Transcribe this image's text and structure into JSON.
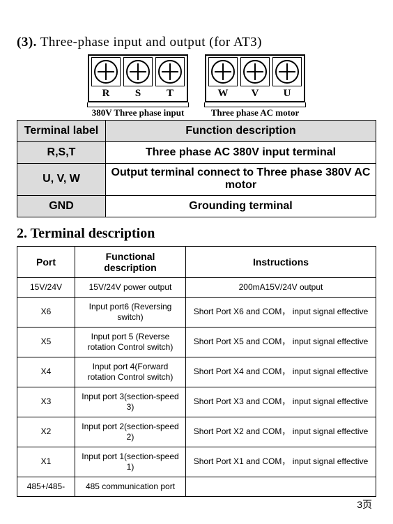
{
  "section": {
    "number": "(3).",
    "title": "Three-phase input and output (for AT3)"
  },
  "diagram": {
    "left": {
      "terminals": [
        "R",
        "S",
        "T"
      ],
      "caption": "380V Three phase input"
    },
    "right": {
      "terminals": [
        "W",
        "V",
        "U"
      ],
      "caption": "Three phase AC motor"
    }
  },
  "func_table": {
    "headers": [
      "Terminal label",
      "Function description"
    ],
    "rows": [
      {
        "label": "R,S,T",
        "desc": "Three phase AC 380V input terminal"
      },
      {
        "label": "U, V, W",
        "desc": "Output terminal connect to Three phase 380V AC motor"
      },
      {
        "label": "GND",
        "desc": "Grounding terminal"
      }
    ]
  },
  "h2": "2. Terminal description",
  "port_table": {
    "headers": [
      "Port",
      "Functional description",
      "Instructions"
    ],
    "rows": [
      {
        "port": "15V/24V",
        "func": "15V/24V power output",
        "inst": "200mA15V/24V output"
      },
      {
        "port": "X6",
        "func": "Input port6 (Reversing   switch)",
        "inst": "Short Port X6 and COM， input signal effective"
      },
      {
        "port": "X5",
        "func": "Input port 5 (Reverse rotation Control switch)",
        "inst": "Short Port X5 and COM， input signal effective"
      },
      {
        "port": "X4",
        "func": "Input port 4(Forward rotation Control switch)",
        "inst": "Short Port X4 and COM， input signal effective"
      },
      {
        "port": "X3",
        "func": "Input port 3(section-speed 3)",
        "inst": "Short Port X3 and COM， input signal effective"
      },
      {
        "port": "X2",
        "func": "Input port 2(section-speed 2)",
        "inst": "Short Port X2 and COM， input signal effective"
      },
      {
        "port": "X1",
        "func": "Input port 1(section-speed 1)",
        "inst": "Short Port X1 and COM， input signal effective"
      },
      {
        "port": "485+/485-",
        "func": "485 communication port",
        "inst": ""
      }
    ]
  },
  "footer": "3页"
}
